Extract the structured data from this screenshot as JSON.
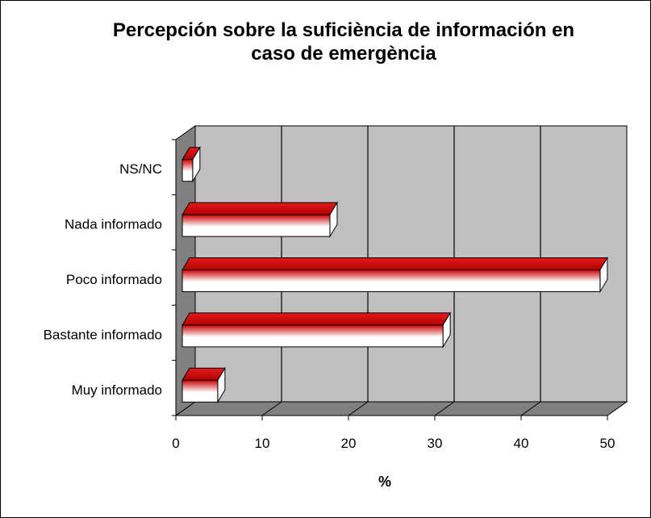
{
  "chart_data": {
    "type": "bar",
    "orientation": "horizontal",
    "title_lines": [
      "Percepción sobre la suficiència de información en",
      "caso de emergència"
    ],
    "xlabel": "%",
    "ylabel": "",
    "categories": [
      "NS/NC",
      "Nada informado",
      "Poco informado",
      "Bastante informado",
      "Muy informado"
    ],
    "values": [
      1.2,
      17.1,
      48.4,
      30.2,
      4.1
    ],
    "xlim": [
      0,
      50
    ],
    "xticks": [
      "0",
      "10",
      "20",
      "30",
      "40",
      "50"
    ],
    "grid": true,
    "legend": "none",
    "style": "3d",
    "colors": {
      "bar_dark": "#cc0000",
      "bar_light": "#ffffff",
      "wall": "#c0c0c0",
      "floor": "#808080",
      "side_wall": "#808080"
    }
  }
}
